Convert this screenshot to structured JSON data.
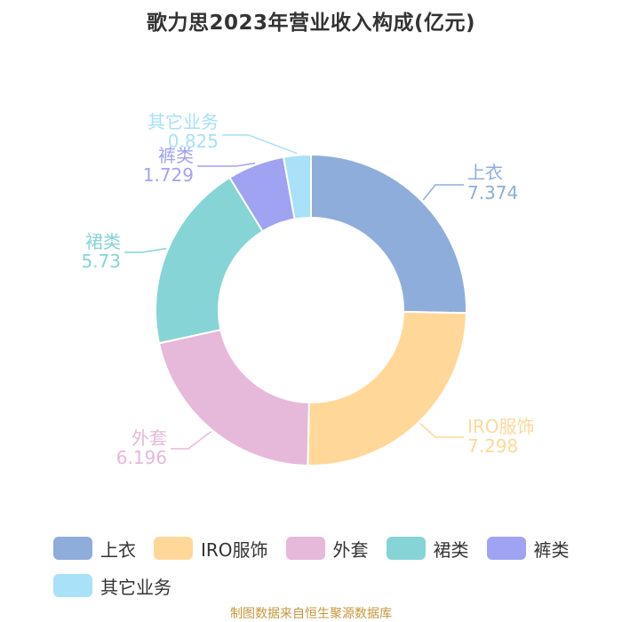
{
  "chart_data": {
    "type": "pie",
    "title": "歌力思2023年营业收入构成(亿元)",
    "categories": [
      "上衣",
      "IRO服饰",
      "外套",
      "裙类",
      "裤类",
      "其它业务"
    ],
    "values": [
      7.374,
      7.298,
      6.196,
      5.73,
      1.729,
      0.825
    ],
    "value_labels": [
      "7.374",
      "7.298",
      "6.196",
      "5.73",
      "1.729",
      "0.825"
    ],
    "colors": [
      "#8eadda",
      "#ffd899",
      "#e6b8d9",
      "#86d4d6",
      "#a0a3f2",
      "#a8e1f8"
    ],
    "legend_position": "bottom"
  },
  "source_note": "制图数据来自恒生聚源数据库"
}
